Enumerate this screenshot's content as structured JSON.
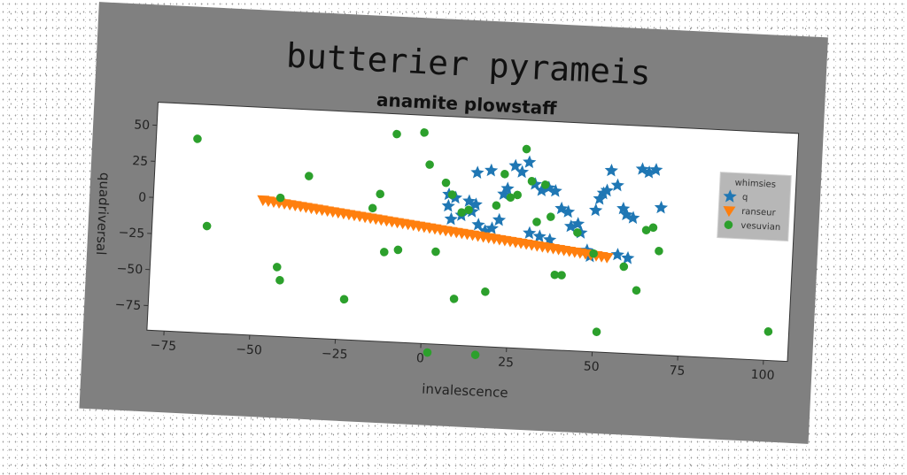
{
  "chart_data": {
    "type": "scatter",
    "suptitle": "butterier pyrameis",
    "title": "anamite plowstaff",
    "xlabel": "invalescence",
    "ylabel": "quadriversal",
    "xlim": [
      -80,
      107
    ],
    "ylim": [
      -92,
      66
    ],
    "xticks": [
      -75,
      -50,
      -25,
      0,
      25,
      50,
      75,
      100
    ],
    "yticks": [
      -75,
      -50,
      -25,
      0,
      25,
      50
    ],
    "xtick_labels": [
      "−75",
      "−50",
      "−25",
      "0",
      "25",
      "50",
      "75",
      "100"
    ],
    "ytick_labels": [
      "−75",
      "−50",
      "−25",
      "0",
      "25",
      "50"
    ],
    "grid": false,
    "legend": {
      "title": "whimsies",
      "placement": "upper-right",
      "entries": [
        "q",
        "ranseur",
        "vesuvian"
      ]
    },
    "series": [
      {
        "name": "q",
        "marker": "star",
        "color": "#1f77b4",
        "points": [
          [
            6,
            12
          ],
          [
            8,
            10
          ],
          [
            6,
            4
          ],
          [
            10,
            -2
          ],
          [
            7,
            -5
          ],
          [
            13,
            1
          ],
          [
            12,
            8
          ],
          [
            14,
            6
          ],
          [
            15,
            -8
          ],
          [
            17,
            -12
          ],
          [
            19,
            -10
          ],
          [
            21,
            -4
          ],
          [
            14,
            28
          ],
          [
            18,
            30
          ],
          [
            22,
            14
          ],
          [
            23,
            18
          ],
          [
            25,
            34
          ],
          [
            27,
            30
          ],
          [
            29,
            37
          ],
          [
            31,
            22
          ],
          [
            33,
            18
          ],
          [
            35,
            20
          ],
          [
            37,
            18
          ],
          [
            39,
            6
          ],
          [
            41,
            4
          ],
          [
            42,
            -6
          ],
          [
            44,
            -4
          ],
          [
            45,
            -10
          ],
          [
            47,
            -22
          ],
          [
            49,
            6
          ],
          [
            50,
            14
          ],
          [
            51,
            18
          ],
          [
            52,
            20
          ],
          [
            53,
            34
          ],
          [
            55,
            24
          ],
          [
            57,
            8
          ],
          [
            58,
            4
          ],
          [
            60,
            2
          ],
          [
            62,
            36
          ],
          [
            64,
            34
          ],
          [
            66,
            36
          ],
          [
            68,
            10
          ],
          [
            30,
            -12
          ],
          [
            33,
            -14
          ],
          [
            36,
            -16
          ],
          [
            48,
            -26
          ],
          [
            56,
            -24
          ],
          [
            59,
            -26
          ]
        ]
      },
      {
        "name": "ranseur",
        "marker": "triangle_down",
        "color": "#ff7f0e",
        "line": {
          "x0": -48,
          "x1": 53,
          "y0": 2,
          "y1": -26,
          "count": 65
        }
      },
      {
        "name": "vesuvian",
        "marker": "circle",
        "color": "#2ca02c",
        "points": [
          [
            -68,
            42
          ],
          [
            -64,
            -18
          ],
          [
            -43,
            4
          ],
          [
            -43,
            -44
          ],
          [
            -42,
            -53
          ],
          [
            -35,
            20
          ],
          [
            -23,
            -64
          ],
          [
            -16,
            0
          ],
          [
            -14,
            10
          ],
          [
            -12,
            -30
          ],
          [
            -10,
            52
          ],
          [
            -8,
            -28
          ],
          [
            -2,
            54
          ],
          [
            0,
            32
          ],
          [
            2,
            -98
          ],
          [
            3,
            -28
          ],
          [
            5,
            20
          ],
          [
            7,
            12
          ],
          [
            9,
            -60
          ],
          [
            10,
            0
          ],
          [
            12,
            2
          ],
          [
            16,
            -98
          ],
          [
            18,
            -54
          ],
          [
            20,
            6
          ],
          [
            22,
            28
          ],
          [
            24,
            12
          ],
          [
            26,
            14
          ],
          [
            28,
            46
          ],
          [
            30,
            24
          ],
          [
            32,
            -4
          ],
          [
            34,
            22
          ],
          [
            36,
            0
          ],
          [
            38,
            -40
          ],
          [
            40,
            -40
          ],
          [
            44,
            -10
          ],
          [
            49,
            -24
          ],
          [
            51,
            -78
          ],
          [
            58,
            -32
          ],
          [
            62,
            -48
          ],
          [
            64,
            -6
          ],
          [
            66,
            -4
          ],
          [
            68,
            -20
          ],
          [
            101,
            -72
          ]
        ]
      }
    ]
  }
}
